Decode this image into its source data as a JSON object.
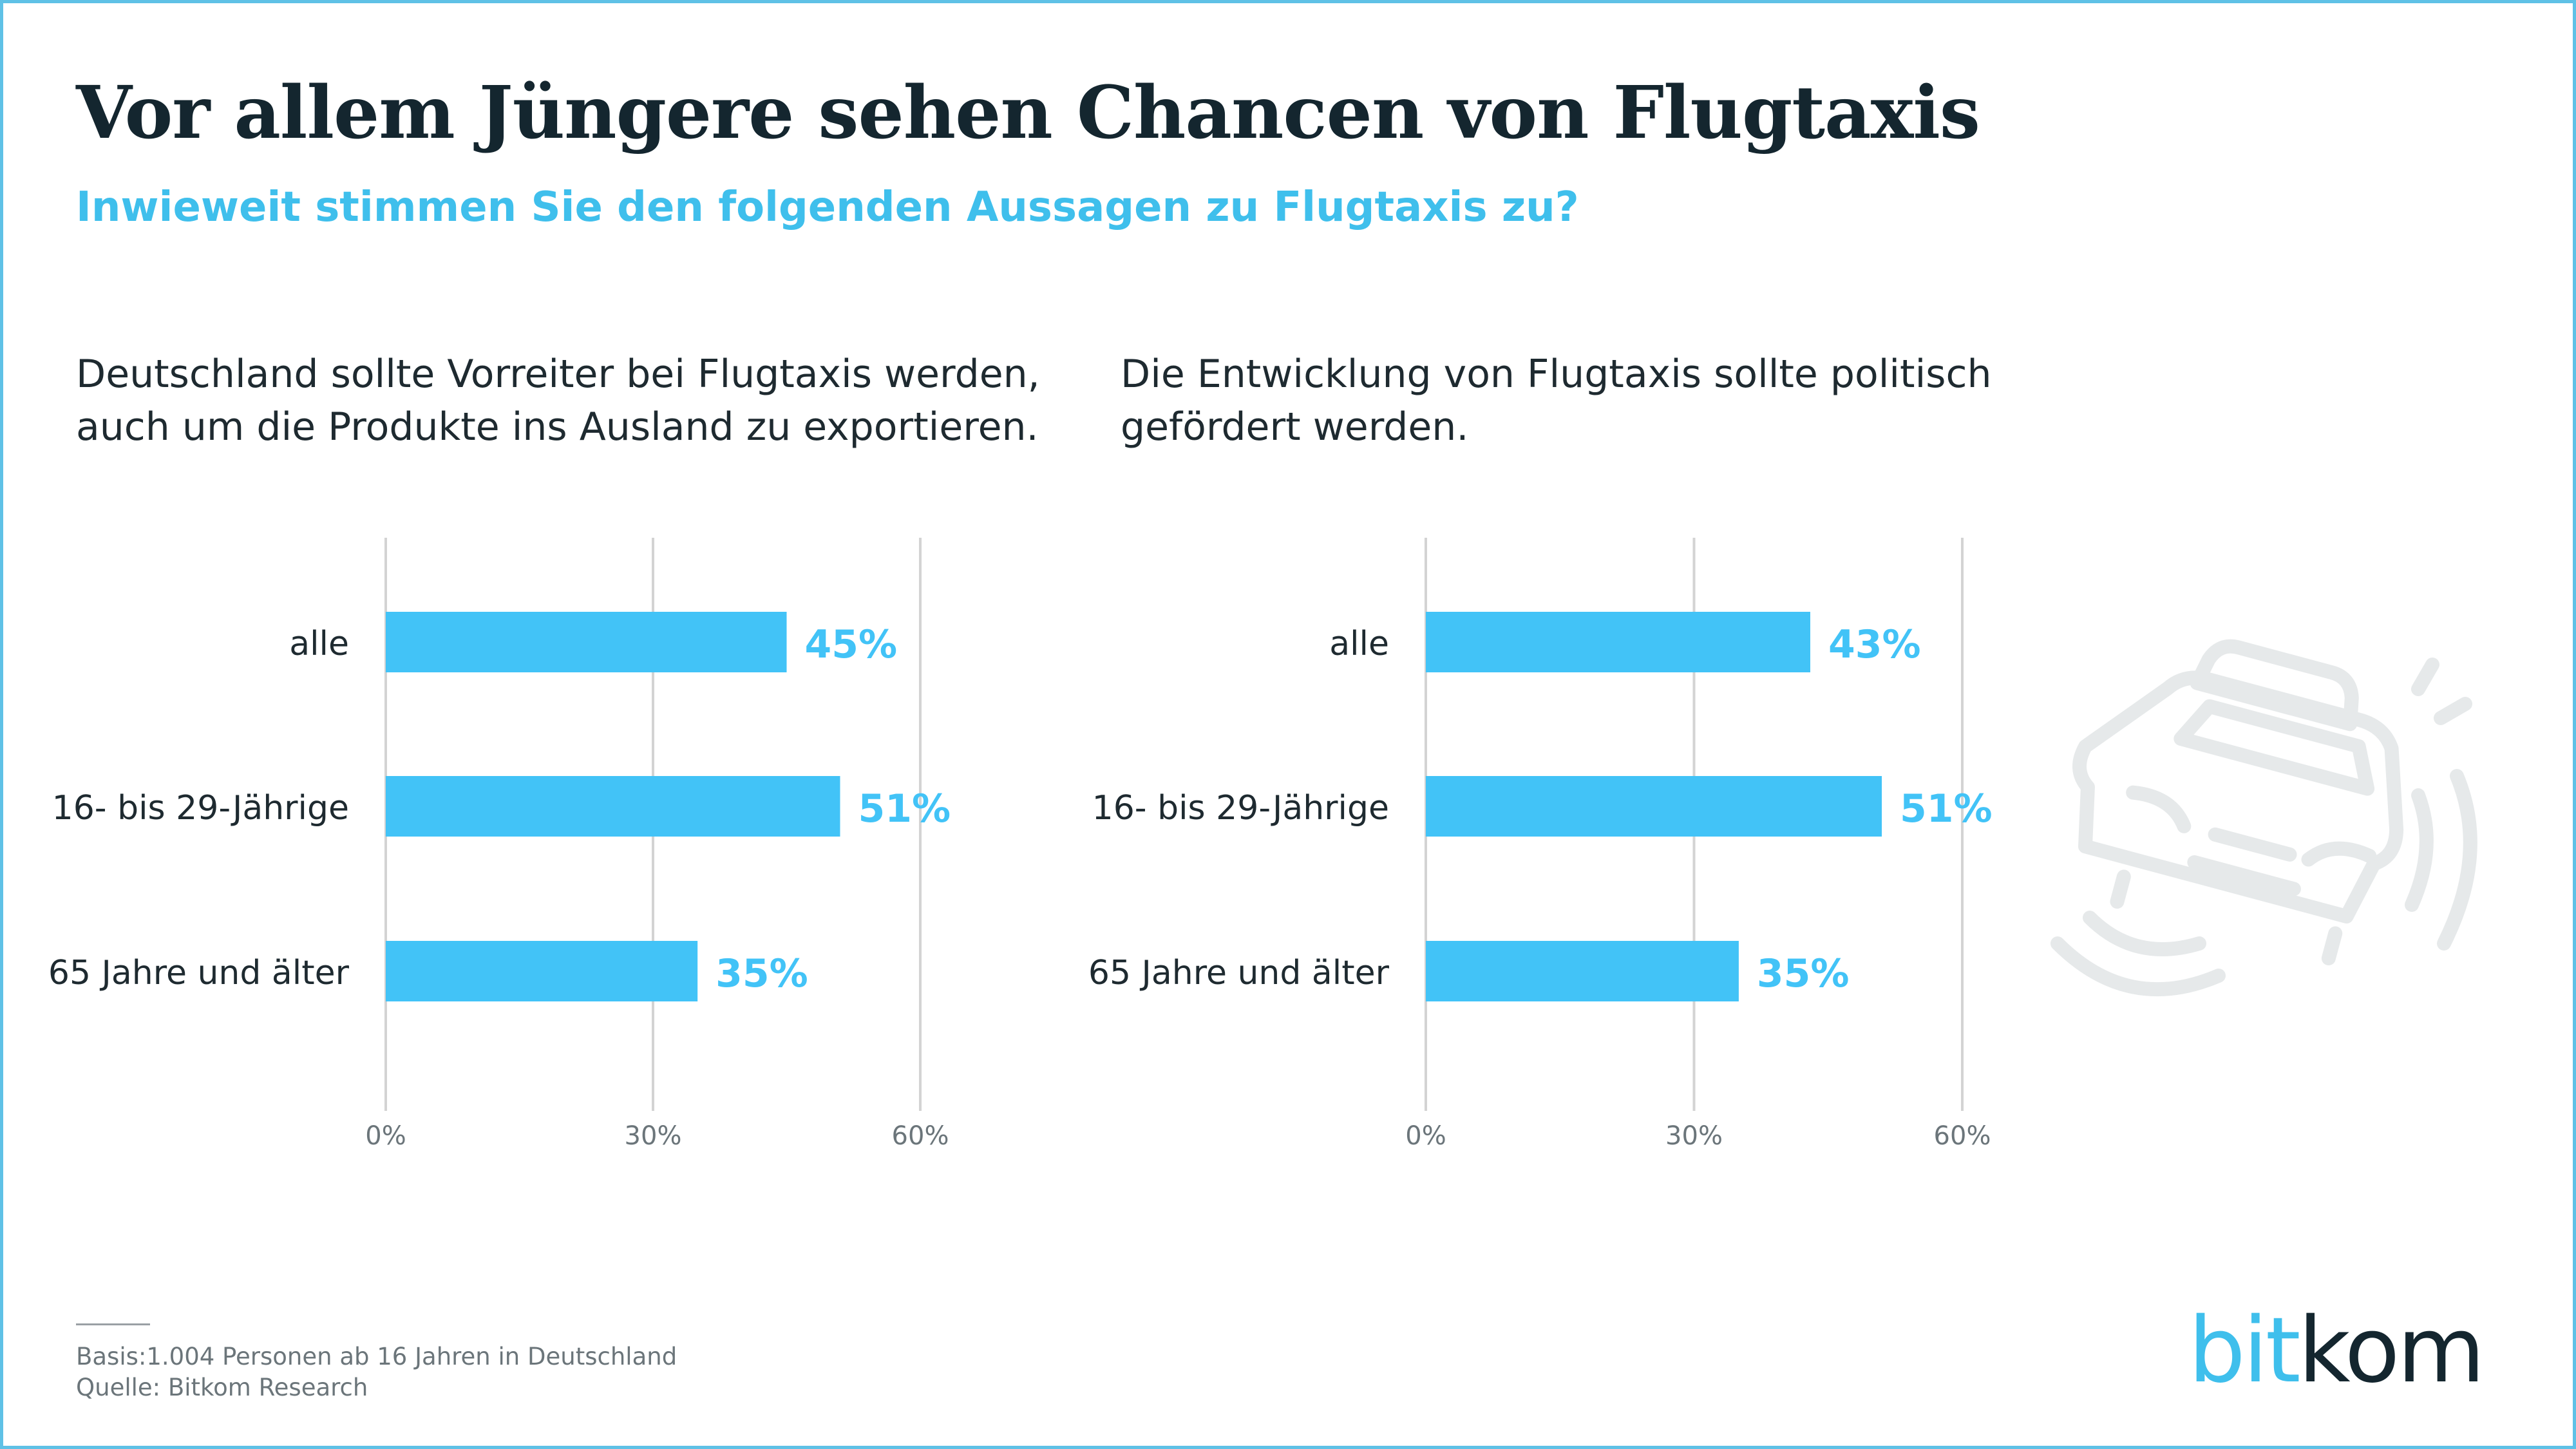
{
  "title": "Vor allem Jüngere sehen Chancen von Flugtaxis",
  "subtitle": "Inwieweit stimmen Sie den folgenden Aussagen zu Flugtaxis zu?",
  "colors": {
    "bar": "#42c3f7",
    "title": "#14262f",
    "accent": "#3fbfec",
    "grid": "#d3d3d3",
    "frame": "#5fc1e6"
  },
  "chart_data": [
    {
      "type": "bar",
      "orientation": "horizontal",
      "title": "Deutschland sollte Vorreiter bei Flugtaxis werden, auch um die Produkte ins Ausland zu exportieren.",
      "title_lines": [
        "Deutschland sollte Vorreiter bei Flugtaxis werden,",
        "auch um die Produkte ins Ausland zu exportieren."
      ],
      "categories": [
        "alle",
        "16- bis 29-Jährige",
        "65 Jahre und älter"
      ],
      "values": [
        45,
        51,
        35
      ],
      "value_labels": [
        "45%",
        "51%",
        "35%"
      ],
      "xlim": [
        0,
        60
      ],
      "xticks": [
        0,
        30,
        60
      ],
      "xtick_labels": [
        "0%",
        "30%",
        "60%"
      ],
      "grid": true
    },
    {
      "type": "bar",
      "orientation": "horizontal",
      "title": "Die Entwicklung von Flugtaxis sollte politisch gefördert werden.",
      "title_lines": [
        "Die Entwicklung von Flugtaxis sollte politisch",
        "gefördert werden."
      ],
      "categories": [
        "alle",
        "16- bis 29-Jährige",
        "65 Jahre und älter"
      ],
      "values": [
        43,
        51,
        35
      ],
      "value_labels": [
        "43%",
        "51%",
        "35%"
      ],
      "xlim": [
        0,
        60
      ],
      "xticks": [
        0,
        30,
        60
      ],
      "xtick_labels": [
        "0%",
        "30%",
        "60%"
      ],
      "grid": true
    }
  ],
  "footer": {
    "basis": "Basis:1.004 Personen ab 16 Jahren in Deutschland",
    "source": "Quelle: Bitkom Research"
  },
  "logo": {
    "part1": "bit",
    "part2": "kom"
  },
  "decoration": {
    "icon": "flying-taxi-icon"
  }
}
